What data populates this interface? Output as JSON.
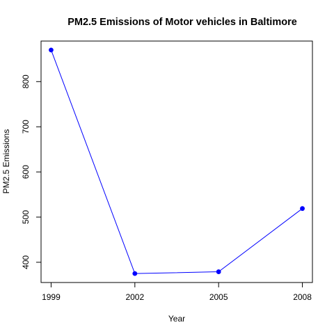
{
  "chart_data": {
    "type": "line",
    "title": "PM2.5 Emissions of Motor vehicles in Baltimore",
    "xlabel": "Year",
    "ylabel": "PM2.5 Emissions",
    "x": [
      1999,
      2002,
      2005,
      2008
    ],
    "series": [
      {
        "values": [
          870,
          375,
          379,
          519
        ],
        "color": "#0000ff"
      }
    ],
    "xticks": [
      1999,
      2002,
      2005,
      2008
    ],
    "yticks": [
      400,
      500,
      600,
      700,
      800
    ],
    "xlim": [
      1998.64,
      2008.36
    ],
    "ylim": [
      355.2,
      889.8
    ],
    "grid": false,
    "legend": "none",
    "marker": "filled-circle"
  }
}
